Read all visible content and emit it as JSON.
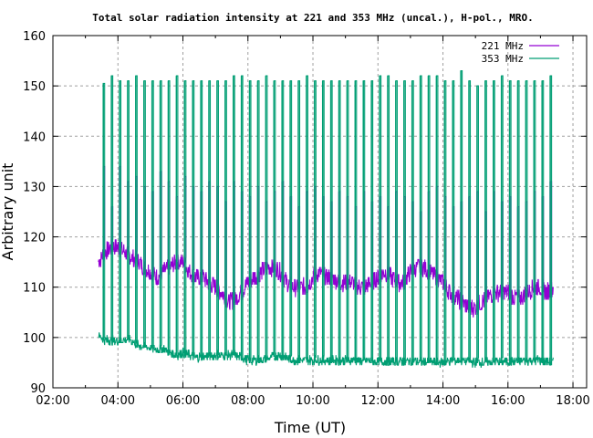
{
  "chart_data": {
    "type": "line",
    "title": "Total solar radiation intensity at 221 and 353 MHz (uncal.), H-pol., MRO.",
    "xlabel": "Time (UT)",
    "ylabel": "Arbitrary unit",
    "xlim_hours": [
      2,
      18.42
    ],
    "ylim": [
      90,
      160
    ],
    "x_ticks": [
      {
        "h": 2,
        "label": "02:00"
      },
      {
        "h": 4,
        "label": "04:00"
      },
      {
        "h": 6,
        "label": "06:00"
      },
      {
        "h": 8,
        "label": "08:00"
      },
      {
        "h": 10,
        "label": "10:00"
      },
      {
        "h": 12,
        "label": "12:00"
      },
      {
        "h": 14,
        "label": "14:00"
      },
      {
        "h": 16,
        "label": "16:00"
      },
      {
        "h": 18,
        "label": "18:00"
      }
    ],
    "y_ticks": [
      90,
      100,
      110,
      120,
      130,
      140,
      150,
      160
    ],
    "grid": true,
    "legend_position": "top-right",
    "series": [
      {
        "name": "221 MHz",
        "color": "#9400d3",
        "baseline_x": [
          3.4,
          3.6,
          3.8,
          4.0,
          4.2,
          4.4,
          4.6,
          4.8,
          5.0,
          5.2,
          5.4,
          5.6,
          5.8,
          6.0,
          6.2,
          6.4,
          6.6,
          6.8,
          7.0,
          7.2,
          7.4,
          7.6,
          7.8,
          8.0,
          8.2,
          8.4,
          8.6,
          8.8,
          9.0,
          9.2,
          9.4,
          9.6,
          9.8,
          10.0,
          10.2,
          10.4,
          10.6,
          10.8,
          11.0,
          11.2,
          11.4,
          11.6,
          11.8,
          12.0,
          12.2,
          12.4,
          12.6,
          12.8,
          13.0,
          13.2,
          13.4,
          13.6,
          13.8,
          14.0,
          14.2,
          14.4,
          14.6,
          14.8,
          15.0,
          15.2,
          15.4,
          15.6,
          15.8,
          16.0,
          16.2,
          16.4,
          16.6,
          16.8,
          17.0,
          17.2,
          17.4
        ],
        "baseline_y": [
          115,
          117,
          118,
          118,
          117,
          116,
          115.5,
          114,
          113,
          112,
          113,
          114,
          115,
          115,
          113,
          112,
          112,
          111,
          110,
          109,
          107,
          107.5,
          109,
          111,
          112,
          113,
          114,
          114,
          113,
          111,
          110,
          110,
          110,
          112,
          113,
          112,
          112,
          111,
          111,
          111,
          110,
          110,
          111,
          112,
          113,
          112,
          111,
          111,
          113,
          114,
          114,
          113,
          112,
          111,
          109,
          108,
          107,
          106,
          106,
          107,
          108,
          109,
          109,
          109,
          108,
          108,
          109,
          110,
          110,
          109,
          110
        ],
        "spike_peaks": [
          134,
          126,
          134,
          131,
          132,
          130,
          129,
          133,
          131,
          128,
          132,
          130,
          129,
          131,
          130,
          127,
          131,
          129,
          128,
          130,
          127,
          129,
          131,
          128,
          126,
          129,
          130,
          128,
          127,
          129,
          128,
          126,
          129,
          127,
          128,
          126,
          129,
          128,
          127,
          125,
          129,
          130,
          128,
          126,
          127,
          128,
          129,
          125,
          129,
          127,
          128,
          126,
          127,
          129,
          128,
          131
        ]
      },
      {
        "name": "353 MHz",
        "color": "#009e73",
        "baseline_x": [
          3.4,
          3.6,
          4.0,
          4.2,
          4.4,
          4.6,
          4.8,
          5.0,
          5.2,
          5.4,
          5.6,
          5.8,
          6.0,
          6.2,
          6.4,
          7.0,
          7.6,
          8.0,
          8.4,
          9.0,
          9.4,
          10.0,
          11.0,
          12.0,
          13.0,
          14.0,
          14.5,
          15.0,
          16.0,
          17.0,
          17.4
        ],
        "baseline_y": [
          100.5,
          99.5,
          99.3,
          99.5,
          99.5,
          98.5,
          98.2,
          98,
          97.5,
          97.8,
          97,
          96.5,
          97,
          96.5,
          96,
          96.5,
          96.5,
          95.5,
          95.5,
          96.5,
          95.5,
          95.5,
          95.5,
          95.2,
          95.3,
          95,
          95.5,
          95,
          95.3,
          95.5,
          95
        ],
        "spike_peaks": [
          150.5,
          152,
          151,
          151,
          152,
          151,
          151,
          151,
          151,
          152,
          151,
          151,
          151,
          151,
          151,
          151,
          152,
          152,
          151,
          151,
          152,
          151,
          151,
          151,
          151,
          152,
          151,
          151,
          151,
          151,
          151,
          151,
          151,
          151,
          152,
          152,
          151,
          151,
          151,
          152,
          152,
          152,
          151,
          151,
          153,
          151,
          150,
          151,
          151,
          152,
          151,
          151,
          151,
          151,
          151,
          152
        ]
      }
    ],
    "spike_schedule": {
      "first_h": 3.55,
      "interval_h": 0.25
    }
  }
}
